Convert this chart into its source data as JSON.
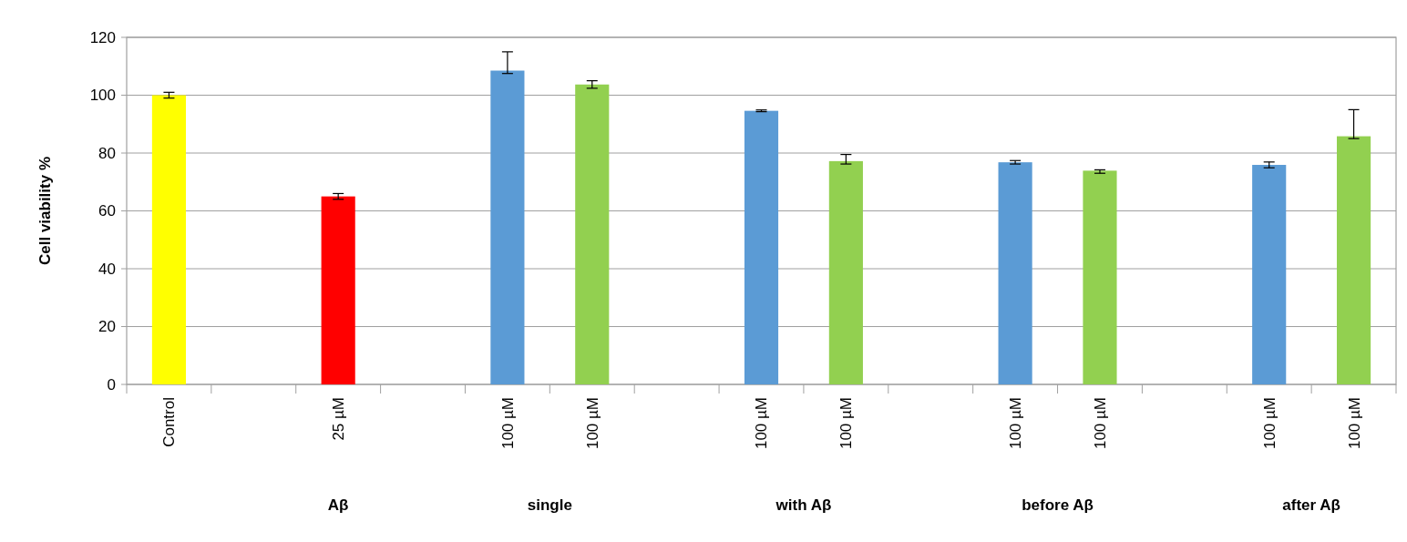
{
  "chart_data": {
    "type": "bar",
    "ylabel": "Cell viability %",
    "categories": [
      "Control",
      null,
      "25 µM",
      null,
      "100 µM",
      "100 µM",
      null,
      "100 µM",
      "100 µM",
      null,
      "100 µM",
      "100 µM",
      null,
      "100 µM",
      "100 µM"
    ],
    "values": [
      100,
      null,
      65,
      null,
      108.5,
      103.7,
      null,
      94.6,
      77.2,
      null,
      76.8,
      73.9,
      null,
      75.9,
      85.8
    ],
    "colors": [
      "#ffff00",
      null,
      "#ff0000",
      null,
      "#5b9bd5",
      "#92d050",
      null,
      "#5b9bd5",
      "#92d050",
      null,
      "#5b9bd5",
      "#92d050",
      null,
      "#5b9bd5",
      "#92d050"
    ],
    "errors": [
      1,
      null,
      1,
      null,
      [
        107.5,
        115
      ],
      1.3,
      null,
      0.3,
      [
        76.2,
        79.5
      ],
      null,
      0.6,
      [
        73,
        74.2
      ],
      null,
      1,
      [
        85,
        95
      ]
    ],
    "ylim": [
      0,
      120
    ],
    "yticks": [
      0,
      20,
      40,
      60,
      80,
      100,
      120
    ],
    "grid": "y",
    "annotations": [
      "Aβ",
      "single",
      "with Aβ",
      "before Aβ",
      "after Aβ"
    ]
  }
}
